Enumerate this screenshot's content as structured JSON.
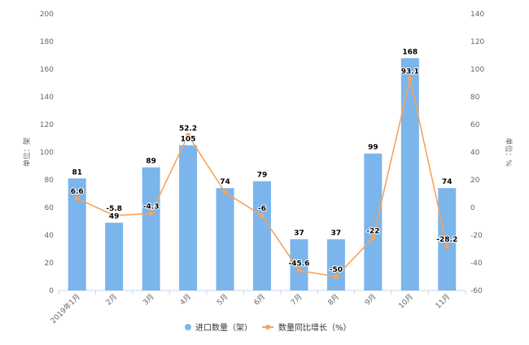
{
  "chart_data": {
    "type": "bar",
    "categories": [
      "2019年1月",
      "2月",
      "3月",
      "4月",
      "5月",
      "6月",
      "7月",
      "8月",
      "9月",
      "10月",
      "11月"
    ],
    "series": [
      {
        "name": "进口数量（架）",
        "type": "bar",
        "axis": "left",
        "color": "#7cb5ec",
        "values": [
          81,
          49,
          89,
          105,
          74,
          79,
          37,
          37,
          99,
          168,
          74
        ]
      },
      {
        "name": "数量同比增长（%）",
        "type": "line",
        "axis": "right",
        "color": "#f7a35c",
        "values": [
          6.6,
          -5.8,
          -4.3,
          52.2,
          11.0,
          -6.0,
          -45.6,
          -50.0,
          -22.0,
          93.1,
          -28.2
        ],
        "labels": [
          "6.6",
          "-5.8",
          "-4.3",
          "52.2",
          "",
          "-6",
          "-45.6",
          "-50",
          "-22",
          "93.1",
          "-28.2"
        ]
      }
    ],
    "ylabel_left": "单位：架",
    "ylabel_right": "单位：%",
    "ylim_left": [
      0,
      200
    ],
    "ylim_right": [
      -60,
      140
    ],
    "yticks_left": [
      0,
      20,
      40,
      60,
      80,
      100,
      120,
      140,
      160,
      180,
      200
    ],
    "yticks_right": [
      -60,
      -40,
      -20,
      0,
      20,
      40,
      60,
      80,
      100,
      120,
      140
    ],
    "legend_position": "bottom",
    "grid": false
  }
}
